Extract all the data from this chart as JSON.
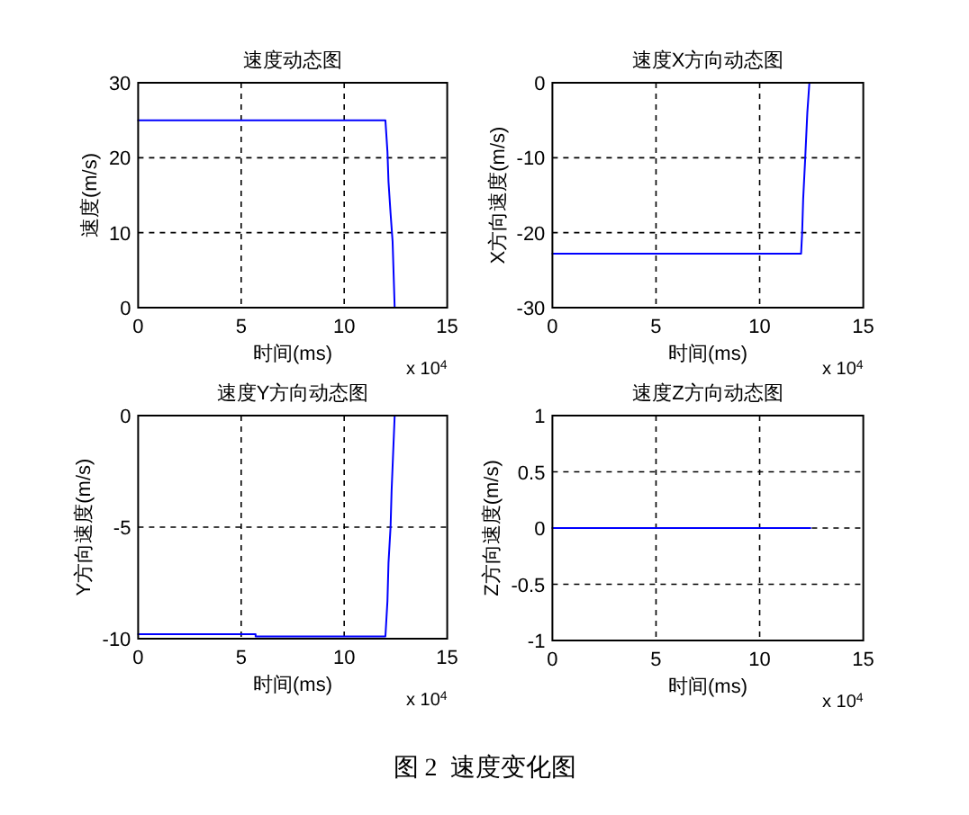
{
  "chart_data": [
    {
      "type": "line",
      "title": "速度动态图",
      "xlabel": "时间(ms)",
      "ylabel": "速度(m/s)",
      "annotations": [
        "x 10$^{4}$"
      ],
      "x": [
        0,
        12.0,
        12.1,
        12.15,
        12.25,
        12.35,
        12.45
      ],
      "series": [
        {
          "color": "#0000ff",
          "values": [
            25,
            25,
            20.8,
            16.8,
            12.6,
            8.8,
            0
          ]
        }
      ],
      "xlim": [
        0,
        15
      ],
      "xticks": [
        0,
        5,
        10,
        15
      ],
      "ylim": [
        0,
        30
      ],
      "yticks": [
        0,
        10,
        20,
        30
      ],
      "grid": true,
      "line_style": "solid"
    },
    {
      "type": "line",
      "title": "速度X方向动态图",
      "xlabel": "时间(ms)",
      "ylabel": "X方向速度(m/s)",
      "annotations": [
        "x 10$^{4}$"
      ],
      "x": [
        0,
        12.0,
        12.05,
        12.1,
        12.2,
        12.3,
        12.4
      ],
      "series": [
        {
          "color": "#0000ff",
          "values": [
            -22.8,
            -22.8,
            -20,
            -15.5,
            -10,
            -4,
            0
          ]
        }
      ],
      "xlim": [
        0,
        15
      ],
      "xticks": [
        0,
        5,
        10,
        15
      ],
      "ylim": [
        -30,
        0
      ],
      "yticks": [
        -30,
        -20,
        -10,
        0
      ],
      "grid": true,
      "line_style": "solid"
    },
    {
      "type": "line",
      "title": "速度Y方向动态图",
      "xlabel": "时间(ms)",
      "ylabel": "Y方向速度(m/s)",
      "annotations": [
        "x 10$^{4}$"
      ],
      "x": [
        0,
        5.7,
        5.7,
        12.0,
        12.1,
        12.15,
        12.25,
        12.3,
        12.45
      ],
      "series": [
        {
          "color": "#0000ff",
          "values": [
            -9.8,
            -9.8,
            -9.9,
            -9.9,
            -8.3,
            -6.6,
            -5,
            -3.4,
            0
          ]
        }
      ],
      "xlim": [
        0,
        15
      ],
      "xticks": [
        0,
        5,
        10,
        15
      ],
      "ylim": [
        -10,
        0
      ],
      "yticks": [
        -10,
        -5,
        0
      ],
      "grid": true,
      "line_style": "solid"
    },
    {
      "type": "line",
      "title": "速度Z方向动态图",
      "xlabel": "时间(ms)",
      "ylabel": "Z方向速度(m/s)",
      "annotations": [
        "x 10$^{4}$",
        "图 2  速度变化图"
      ],
      "x": [
        0,
        12.45
      ],
      "series": [
        {
          "color": "#0000ff",
          "values": [
            0,
            0
          ]
        }
      ],
      "xlim": [
        0,
        15
      ],
      "xticks": [
        0,
        5,
        10,
        15
      ],
      "ylim": [
        -1,
        1
      ],
      "yticks": [
        -1,
        -0.5,
        0,
        0.5,
        1
      ],
      "grid": true,
      "line_style": "solid"
    }
  ]
}
